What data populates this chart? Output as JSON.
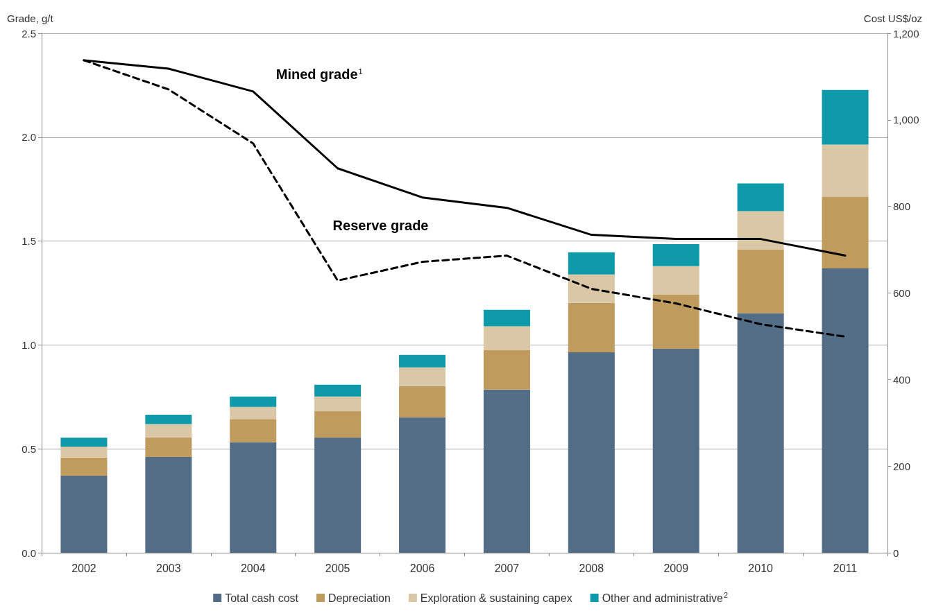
{
  "chart_data": {
    "type": "bar",
    "stacked": true,
    "ylabel": "Grade, g/t",
    "y2label": "Cost US$/oz",
    "categories": [
      "2002",
      "2003",
      "2004",
      "2005",
      "2006",
      "2007",
      "2008",
      "2009",
      "2010",
      "2011"
    ],
    "series": [
      {
        "name": "Total cash cost",
        "color": "#536d86",
        "axis": "y2",
        "values": [
          178,
          221,
          255,
          266,
          313,
          377,
          463,
          471,
          553,
          657
        ]
      },
      {
        "name": "Depreciation",
        "color": "#bf9b5e",
        "axis": "y2",
        "values": [
          42,
          45,
          54,
          61,
          72,
          91,
          114,
          125,
          148,
          165
        ]
      },
      {
        "name": "Exploration & sustaining capex",
        "color": "#d9c7a5",
        "axis": "y2",
        "values": [
          25,
          31,
          28,
          34,
          43,
          55,
          66,
          66,
          88,
          121
        ]
      },
      {
        "name": "Other and administrative$^{2}$",
        "color": "#0f9aaa",
        "axis": "y2",
        "values": [
          21,
          22,
          24,
          27,
          29,
          38,
          51,
          51,
          64,
          126
        ]
      },
      {
        "name": "Mined grade$^{1}$",
        "type": "line",
        "color": "#000000",
        "line_style": "solid",
        "axis": "y",
        "values": [
          2.37,
          2.33,
          2.22,
          1.85,
          1.71,
          1.66,
          1.53,
          1.51,
          1.51,
          1.43
        ]
      },
      {
        "name": "Reserve grade",
        "type": "line",
        "color": "#000000",
        "line_style": "dashed",
        "axis": "y",
        "values": [
          2.37,
          2.23,
          1.97,
          1.31,
          1.4,
          1.43,
          1.27,
          1.2,
          1.1,
          1.04
        ]
      }
    ],
    "ylim": [
      0,
      2.5
    ],
    "yticks": [
      {
        "value": 0,
        "label": "0.0"
      },
      {
        "value": 0.5,
        "label": "0.5"
      },
      {
        "value": 1,
        "label": "1.0"
      },
      {
        "value": 1.5,
        "label": "1.5"
      },
      {
        "value": 2,
        "label": "2.0"
      },
      {
        "value": 2.5,
        "label": "2.5"
      }
    ],
    "y2lim": [
      0,
      1200
    ],
    "y2ticks": [
      0,
      200,
      400,
      600,
      800,
      {
        "value": 1000,
        "label": "1,000"
      },
      {
        "value": 1200,
        "label": "1,200"
      }
    ],
    "grid": "y",
    "legend": "bottom",
    "marker": "none"
  }
}
